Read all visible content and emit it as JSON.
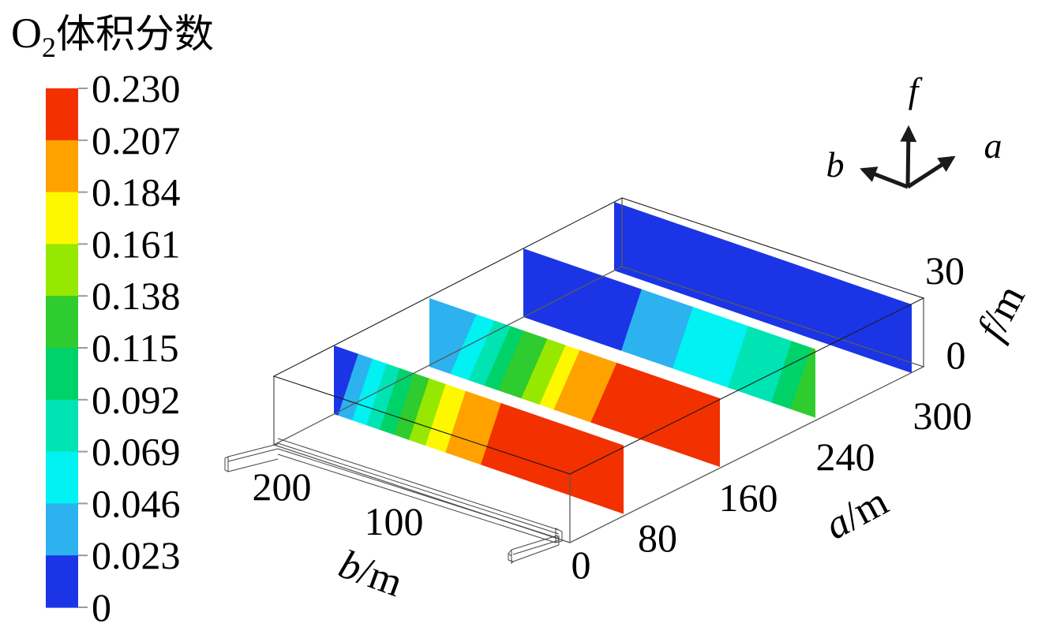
{
  "title": {
    "o2_main": "O",
    "o2_sub": "2",
    "text": "体积分数"
  },
  "colorbar": {
    "labels_top_to_bottom": [
      "0.230",
      "0.207",
      "0.184",
      "0.161",
      "0.138",
      "0.115",
      "0.092",
      "0.069",
      "0.046",
      "0.023",
      "0"
    ],
    "tick_color": "#9a9a9a"
  },
  "triad": {
    "up_label": "f",
    "left_label": "b",
    "right_label": "a"
  },
  "axis_a": {
    "label_var": "a",
    "label_unit": "/m",
    "ticks": [
      "80",
      "160",
      "240",
      "300"
    ]
  },
  "axis_b": {
    "label_var": "b",
    "label_unit": "/m",
    "ticks": [
      "100",
      "200"
    ]
  },
  "axis_f": {
    "label_var": "f",
    "label_unit": "/m",
    "ticks": [
      "30",
      "0"
    ]
  },
  "shared_origin_label": "0",
  "chart_data": {
    "type": "heatmap",
    "title": "O2体积分数 (O2 volume fraction) shown on four vertical contour slices inside a 3D wireframe goaf model",
    "legend_position": "left",
    "colorbar": {
      "min": 0,
      "max": 0.23,
      "tick_values": [
        0,
        0.023,
        0.046,
        0.069,
        0.092,
        0.115,
        0.138,
        0.161,
        0.184,
        0.207,
        0.23
      ],
      "colors_low_to_high": [
        "#1b35e6",
        "#2cb2ef",
        "#00f2f2",
        "#00e4b4",
        "#00d26a",
        "#2ecc2e",
        "#96e800",
        "#fdf800",
        "#ffa200",
        "#f23000"
      ]
    },
    "axes": {
      "a": {
        "label": "a/m",
        "range": [
          0,
          300
        ],
        "ticks": [
          0,
          80,
          160,
          240,
          300
        ]
      },
      "b": {
        "label": "b/m",
        "range": [
          0,
          230
        ],
        "ticks": [
          0,
          100,
          200
        ]
      },
      "f": {
        "label": "f/m",
        "range": [
          0,
          30
        ],
        "ticks": [
          0,
          30
        ]
      }
    },
    "orientation_axes": [
      "f",
      "b",
      "a"
    ],
    "slices_note": "Each slice is a constant-a plane spanning b and f. Bands listed from far end (high b, left in image) to front end (b=0, right in image); 'c' is an index into colors_low_to_high, 'to' is the fractional position where the band ends.",
    "slices": [
      {
        "a_m": 45,
        "bands": [
          {
            "c": 0,
            "to": 0.049
          },
          {
            "c": 1,
            "to": 0.098
          },
          {
            "c": 2,
            "to": 0.147
          },
          {
            "c": 3,
            "to": 0.193
          },
          {
            "c": 4,
            "to": 0.242
          },
          {
            "c": 5,
            "to": 0.294
          },
          {
            "c": 6,
            "to": 0.351
          },
          {
            "c": 7,
            "to": 0.42
          },
          {
            "c": 8,
            "to": 0.542
          },
          {
            "c": 9,
            "to": 1
          }
        ]
      },
      {
        "a_m": 127,
        "bands": [
          {
            "c": 1,
            "to": 0.117
          },
          {
            "c": 2,
            "to": 0.179
          },
          {
            "c": 3,
            "to": 0.234
          },
          {
            "c": 4,
            "to": 0.28
          },
          {
            "c": 5,
            "to": 0.361
          },
          {
            "c": 6,
            "to": 0.424
          },
          {
            "c": 7,
            "to": 0.473
          },
          {
            "c": 8,
            "to": 0.6
          },
          {
            "c": 9,
            "to": 1
          }
        ]
      },
      {
        "a_m": 208,
        "bands": [
          {
            "c": 0,
            "to": 0.37
          },
          {
            "c": 1,
            "to": 0.546
          },
          {
            "c": 2,
            "to": 0.735
          },
          {
            "c": 3,
            "to": 0.884
          },
          {
            "c": 4,
            "to": 0.95
          },
          {
            "c": 5,
            "to": 1
          }
        ]
      },
      {
        "a_m": 290,
        "bands": [
          {
            "c": 0,
            "to": 1
          }
        ]
      }
    ]
  }
}
